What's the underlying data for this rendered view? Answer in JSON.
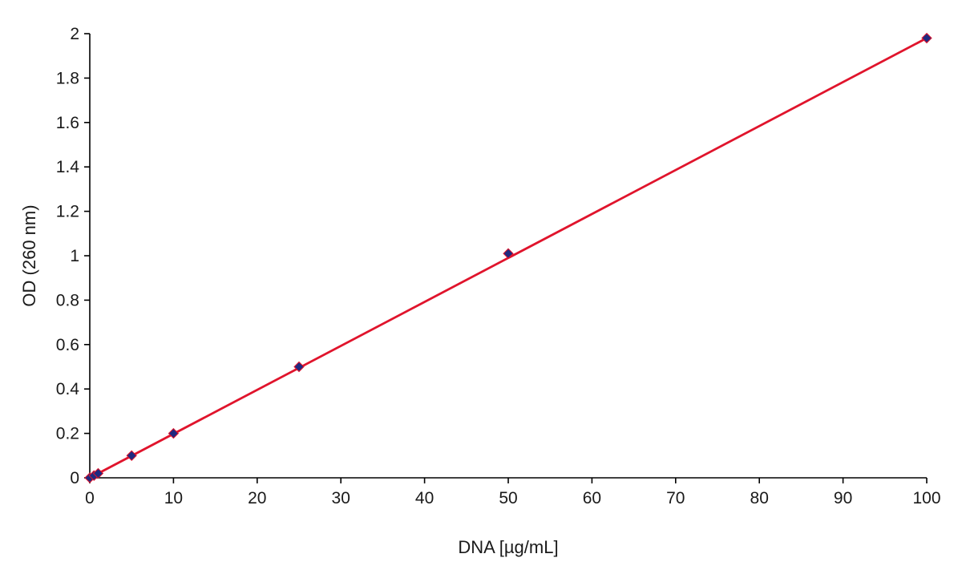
{
  "chart_data": {
    "type": "scatter",
    "title": "",
    "xlabel": "DNA  [µg/mL]",
    "ylabel": "OD (260 nm)",
    "xlim": [
      0,
      100
    ],
    "ylim": [
      0,
      2
    ],
    "x_ticks": [
      "0",
      "10",
      "20",
      "30",
      "40",
      "50",
      "60",
      "70",
      "80",
      "90",
      "100"
    ],
    "y_ticks": [
      "0",
      "0.2",
      "0.4",
      "0.6",
      "0.8",
      "1",
      "1.2",
      "1.4",
      "1.6",
      "1.8",
      "2"
    ],
    "grid": false,
    "legend": "none",
    "series": [
      {
        "x": [
          0,
          0.5,
          1,
          5,
          10,
          25,
          50,
          100
        ],
        "y": [
          0,
          0.01,
          0.02,
          0.1,
          0.2,
          0.5,
          1.01,
          1.98
        ],
        "marker": "diamond",
        "marker_color": "#1f2a80"
      }
    ],
    "trendline": {
      "type": "linear",
      "x": [
        0,
        100
      ],
      "y": [
        0,
        1.98
      ],
      "color": "#e0142c"
    }
  }
}
